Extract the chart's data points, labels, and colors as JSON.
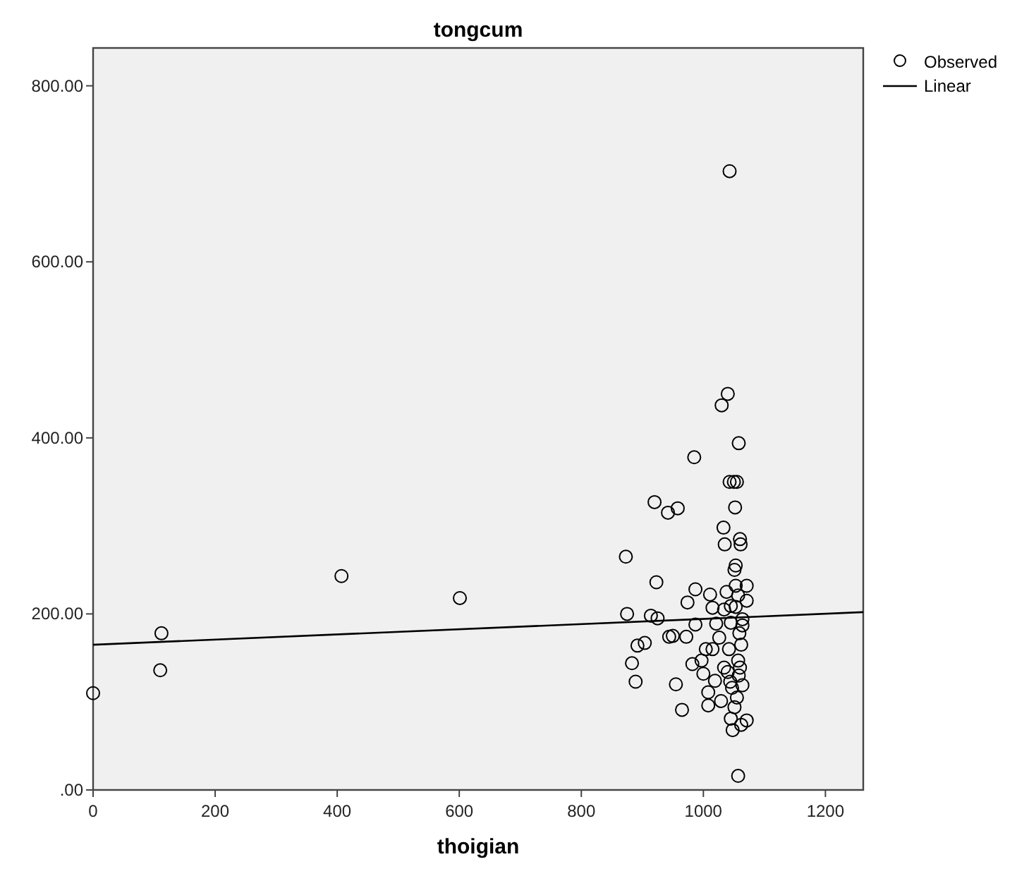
{
  "chart_data": {
    "type": "scatter",
    "title": "tongcum",
    "xlabel": "thoigian",
    "xlim": [
      0,
      1262
    ],
    "xticks": [
      0,
      200,
      400,
      600,
      800,
      1000,
      1200
    ],
    "ylim": [
      0,
      843
    ],
    "yticks": [
      {
        "value": 0,
        "label": ".00"
      },
      {
        "value": 200,
        "label": "200.00"
      },
      {
        "value": 400,
        "label": "400.00"
      },
      {
        "value": 600,
        "label": "600.00"
      },
      {
        "value": 800,
        "label": "800.00"
      }
    ],
    "legend": "right",
    "grid": false,
    "series": [
      {
        "name": "Observed",
        "marker": "circle",
        "color": "#000000",
        "x": [
          0,
          112,
          110,
          407,
          601,
          873,
          875,
          883,
          889,
          892,
          904,
          923,
          914,
          925,
          944,
          950,
          955,
          965,
          972,
          974,
          982,
          987,
          987,
          997,
          1000,
          1008,
          1008,
          1004,
          1011,
          1015,
          1015,
          1019,
          1021,
          1026,
          1029,
          1034,
          1034,
          1035,
          1038,
          1040,
          1042,
          1044,
          1045,
          1045,
          1045,
          1047,
          1048,
          1051,
          1051,
          1053,
          1053,
          1053,
          1055,
          1057,
          1057,
          1058,
          1059,
          1061,
          1060,
          1062,
          1064,
          1064,
          1064,
          1062,
          1057,
          1071,
          1071,
          1071,
          1043,
          1040,
          1030,
          1058,
          985,
          1043,
          1050,
          1055,
          920,
          958,
          1052,
          942,
          1033,
          1060
        ],
        "values": [
          110,
          178,
          136,
          243,
          218,
          265,
          200,
          144,
          123,
          164,
          167,
          236,
          198,
          195,
          174,
          175,
          120,
          91,
          174,
          213,
          143,
          228,
          188,
          147,
          132,
          111,
          96,
          160,
          222,
          160,
          207,
          124,
          189,
          173,
          101,
          205,
          139,
          279,
          225,
          134,
          160,
          123,
          190,
          209,
          81,
          116,
          68,
          250,
          94,
          255,
          208,
          232,
          105,
          147,
          221,
          130,
          178,
          279,
          139,
          165,
          187,
          194,
          119,
          74,
          16,
          232,
          215,
          79,
          703,
          450,
          437,
          394,
          378,
          350,
          350,
          350,
          327,
          320,
          321,
          315,
          298,
          285
        ]
      },
      {
        "name": "Linear",
        "type": "line",
        "marker": "none",
        "color": "#000000",
        "x": [
          0,
          1262
        ],
        "values": [
          165,
          202
        ]
      }
    ]
  }
}
